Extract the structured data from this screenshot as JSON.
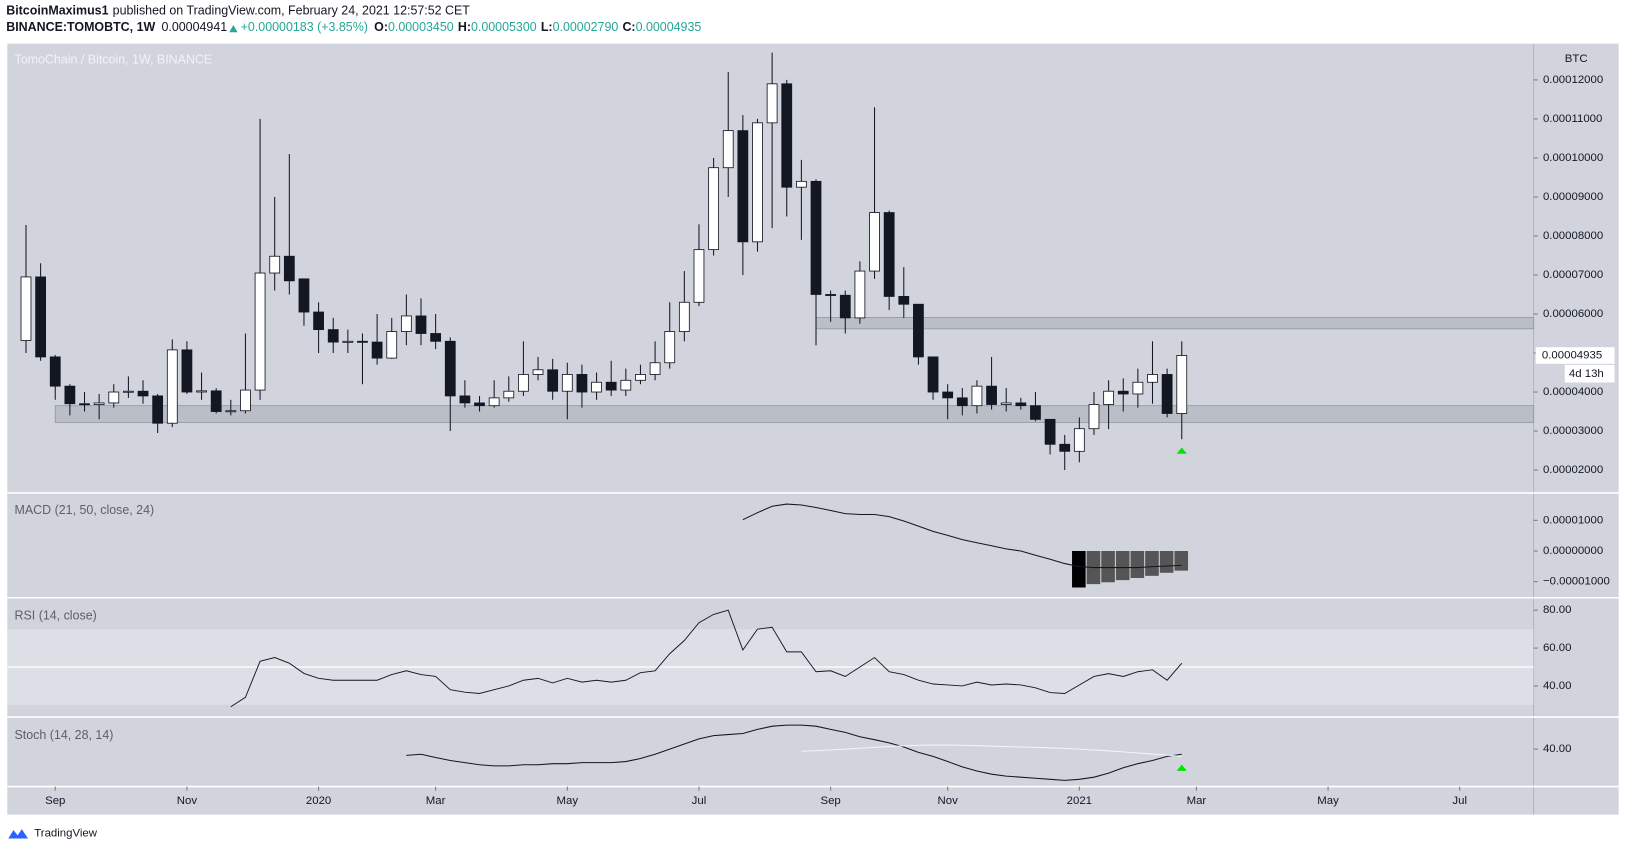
{
  "header": {
    "author": "BitcoinMaximus1",
    "published": "published on TradingView.com, February 24, 2021 12:57:52 CET",
    "symbol": "BINANCE:TOMOBTC, 1W",
    "last": "0.00004941",
    "change": "+0.00000183 (+3.85%)",
    "ohlc": [
      {
        "label": "O:",
        "value": "0.00003450"
      },
      {
        "label": "H:",
        "value": "0.00005300"
      },
      {
        "label": "L:",
        "value": "0.00002790"
      },
      {
        "label": "C:",
        "value": "0.00004935"
      }
    ]
  },
  "footer": {
    "brand": "TradingView"
  },
  "chart_data": [
    {
      "type": "candlestick",
      "title": "TomoChain / Bitcoin, 1W, BINANCE",
      "unit": "BTC",
      "up_color": "#ffffff",
      "down_color": "#131722",
      "categories": [
        null,
        null,
        null,
        null,
        null,
        null,
        null,
        null,
        null,
        null,
        null,
        null,
        null,
        null,
        null,
        null,
        null,
        null,
        null,
        null,
        null,
        null,
        null,
        null,
        null,
        null,
        null,
        null,
        null,
        null,
        null,
        null,
        null,
        null,
        null,
        null,
        null,
        null,
        null,
        null,
        null,
        null,
        null,
        null,
        null,
        null,
        null,
        null,
        null,
        null,
        null,
        null,
        null,
        null,
        null,
        null,
        null,
        null,
        null,
        null,
        null,
        null,
        null,
        null,
        null,
        null,
        null,
        null,
        null,
        null,
        null,
        null,
        null,
        null,
        null,
        null,
        null,
        null,
        null,
        null
      ],
      "open": [
        5.32e-05,
        6.95e-05,
        4.9e-05,
        4.15e-05,
        3.7e-05,
        3.68e-05,
        3.72e-05,
        4e-05,
        4.02e-05,
        3.9e-05,
        3.2e-05,
        5.08e-05,
        4e-05,
        4.03e-05,
        3.5e-05,
        3.52e-05,
        4.05e-05,
        7.05e-05,
        7.48e-05,
        6.9e-05,
        6.05e-05,
        5.6e-05,
        5.28e-05,
        5.3e-05,
        5.28e-05,
        4.87e-05,
        5.55e-05,
        5.95e-05,
        5.5e-05,
        5.3e-05,
        3.9e-05,
        3.72e-05,
        3.65e-05,
        3.85e-05,
        4.02e-05,
        4.45e-05,
        4.57e-05,
        4.02e-05,
        4.45e-05,
        4e-05,
        4.25e-05,
        4.05e-05,
        4.3e-05,
        4.45e-05,
        4.75e-05,
        5.55e-05,
        6.3e-05,
        7.65e-05,
        9.75e-05,
        0.000107,
        7.85e-05,
        0.000109,
        0.000119,
        9.25e-05,
        9.4e-05,
        6.5e-05,
        6.48e-05,
        5.9e-05,
        7.1e-05,
        8.6e-05,
        6.45e-05,
        6.25e-05,
        4.9e-05,
        4e-05,
        3.85e-05,
        3.65e-05,
        4.15e-05,
        3.68e-05,
        3.72e-05,
        3.65e-05,
        3.3e-05,
        2.66e-05,
        2.48e-05,
        3.06e-05,
        3.68e-05,
        4.02e-05,
        3.95e-05,
        4.25e-05,
        4.45e-05,
        3.45e-05
      ],
      "high": [
        8.28e-05,
        7.3e-05,
        4.95e-05,
        4.2e-05,
        4e-05,
        3.95e-05,
        4.2e-05,
        4.4e-05,
        4.3e-05,
        3.95e-05,
        5.35e-05,
        5.3e-05,
        4.5e-05,
        4.1e-05,
        3.8e-05,
        5.5e-05,
        0.00011,
        9e-05,
        0.000101,
        6.9e-05,
        6.3e-05,
        5.9e-05,
        5.6e-05,
        5.5e-05,
        6e-05,
        5.9e-05,
        6.5e-05,
        6.4e-05,
        6e-05,
        5.4e-05,
        4.3e-05,
        3.9e-05,
        4.3e-05,
        4.4e-05,
        5.3e-05,
        4.9e-05,
        4.85e-05,
        4.75e-05,
        4.7e-05,
        4.5e-05,
        4.8e-05,
        4.6e-05,
        4.7e-05,
        5.3e-05,
        6.3e-05,
        7.1e-05,
        8.3e-05,
        0.0001,
        0.000122,
        0.000111,
        0.00011,
        0.000127,
        0.00012,
        9.95e-05,
        9.45e-05,
        6.6e-05,
        6.6e-05,
        7.35e-05,
        0.000113,
        8.65e-05,
        7.2e-05,
        6.25e-05,
        4.9e-05,
        4.2e-05,
        4.1e-05,
        4.3e-05,
        4.9e-05,
        4.1e-05,
        3.85e-05,
        4e-05,
        3.3e-05,
        2.9e-05,
        3.35e-05,
        4e-05,
        4.3e-05,
        4.35e-05,
        4.6e-05,
        5.3e-05,
        4.6e-05,
        5.3e-05
      ],
      "low": [
        5e-05,
        4.8e-05,
        3.8e-05,
        3.4e-05,
        3.5e-05,
        3.3e-05,
        3.6e-05,
        3.85e-05,
        3.7e-05,
        2.95e-05,
        3.1e-05,
        3.95e-05,
        3.8e-05,
        3.45e-05,
        3.4e-05,
        3.45e-05,
        3.8e-05,
        6.6e-05,
        6.5e-05,
        5.7e-05,
        5e-05,
        5e-05,
        5e-05,
        4.2e-05,
        4.7e-05,
        4.85e-05,
        5.2e-05,
        5.2e-05,
        5.1e-05,
        3e-05,
        3.6e-05,
        3.5e-05,
        3.6e-05,
        3.75e-05,
        3.9e-05,
        4.3e-05,
        3.8e-05,
        3.3e-05,
        3.6e-05,
        3.8e-05,
        3.9e-05,
        3.9e-05,
        4.2e-05,
        4.3e-05,
        4.6e-05,
        5.3e-05,
        6.2e-05,
        7.5e-05,
        9e-05,
        7e-05,
        7.6e-05,
        8.2e-05,
        8.5e-05,
        7.9e-05,
        5.2e-05,
        5.8e-05,
        5.5e-05,
        5.75e-05,
        6.9e-05,
        6.1e-05,
        5.9e-05,
        4.7e-05,
        3.8e-05,
        3.3e-05,
        3.4e-05,
        3.45e-05,
        3.55e-05,
        3.5e-05,
        3.55e-05,
        3.25e-05,
        2.4e-05,
        2e-05,
        2.2e-05,
        2.9e-05,
        3.05e-05,
        3.5e-05,
        3.6e-05,
        3.7e-05,
        3.35e-05,
        2.79e-05
      ],
      "close": [
        6.95e-05,
        4.9e-05,
        4.15e-05,
        3.7e-05,
        3.68e-05,
        3.72e-05,
        4e-05,
        4.02e-05,
        3.9e-05,
        3.2e-05,
        5.08e-05,
        4e-05,
        4.03e-05,
        3.5e-05,
        3.52e-05,
        4.05e-05,
        7.05e-05,
        7.48e-05,
        6.85e-05,
        6.05e-05,
        5.6e-05,
        5.28e-05,
        5.3e-05,
        5.28e-05,
        4.87e-05,
        5.55e-05,
        5.95e-05,
        5.5e-05,
        5.3e-05,
        3.9e-05,
        3.72e-05,
        3.65e-05,
        3.85e-05,
        4.02e-05,
        4.45e-05,
        4.57e-05,
        4.02e-05,
        4.45e-05,
        4e-05,
        4.25e-05,
        4.05e-05,
        4.3e-05,
        4.45e-05,
        4.75e-05,
        5.55e-05,
        6.3e-05,
        7.65e-05,
        9.75e-05,
        0.000107,
        7.85e-05,
        0.000109,
        0.000119,
        9.25e-05,
        9.4e-05,
        6.5e-05,
        6.48e-05,
        5.9e-05,
        7.1e-05,
        8.6e-05,
        6.45e-05,
        6.25e-05,
        4.9e-05,
        4e-05,
        3.85e-05,
        3.65e-05,
        4.15e-05,
        3.68e-05,
        3.72e-05,
        3.65e-05,
        3.3e-05,
        2.66e-05,
        2.48e-05,
        3.06e-05,
        3.68e-05,
        4.02e-05,
        3.95e-05,
        4.25e-05,
        4.45e-05,
        3.45e-05,
        4.935e-05
      ],
      "zones": [
        {
          "from": 2,
          "range": [
            3.22e-05,
            3.65e-05
          ]
        },
        {
          "from": 54,
          "range": [
            5.62e-05,
            5.91e-05
          ]
        }
      ],
      "signals": [
        79
      ],
      "signal_color": "#00e600",
      "last_value": {
        "value": 4.935e-05,
        "label": "0.00004935"
      },
      "countdown": "4d 13h",
      "xlim": [
        -1.28,
        103.05
      ],
      "xticks": [
        {
          "value": 2,
          "label": "Sep"
        },
        {
          "value": 11,
          "label": "Nov"
        },
        {
          "value": 20,
          "label": "2020"
        },
        {
          "value": 28,
          "label": "Mar"
        },
        {
          "value": 37,
          "label": "May"
        },
        {
          "value": 46,
          "label": "Jul"
        },
        {
          "value": 55,
          "label": "Sep"
        },
        {
          "value": 63,
          "label": "Nov"
        },
        {
          "value": 72,
          "label": "2021"
        },
        {
          "value": 80,
          "label": "Mar"
        },
        {
          "value": 89,
          "label": "May"
        },
        {
          "value": 98,
          "label": "Jul"
        }
      ],
      "ylim": [
        1.44e-05,
        0.0001293
      ],
      "yticks": [
        {
          "value": 2e-05,
          "label": "0.00002000"
        },
        {
          "value": 3e-05,
          "label": "0.00003000"
        },
        {
          "value": 4e-05,
          "label": "0.00004000"
        },
        {
          "value": 5e-05,
          "label": "0.00005000"
        },
        {
          "value": 6e-05,
          "label": "0.00006000"
        },
        {
          "value": 7e-05,
          "label": "0.00007000"
        },
        {
          "value": 8e-05,
          "label": "0.00008000"
        },
        {
          "value": 9e-05,
          "label": "0.00009000"
        },
        {
          "value": 0.0001,
          "label": "0.00010000"
        },
        {
          "value": 0.00011,
          "label": "0.00011000"
        },
        {
          "value": 0.00012,
          "label": "0.00012000"
        }
      ]
    },
    {
      "type": "macd",
      "title": "MACD (21, 50, close, 24)",
      "series": [
        {
          "color": "#131722",
          "values": [
            null,
            null,
            null,
            null,
            null,
            null,
            null,
            null,
            null,
            null,
            null,
            null,
            null,
            null,
            null,
            null,
            null,
            null,
            null,
            null,
            null,
            null,
            null,
            null,
            null,
            null,
            null,
            null,
            null,
            null,
            null,
            null,
            null,
            null,
            null,
            null,
            null,
            null,
            null,
            null,
            null,
            null,
            null,
            null,
            null,
            null,
            null,
            null,
            null,
            1.02e-05,
            1.25e-05,
            1.46e-05,
            1.53e-05,
            1.5e-05,
            1.42e-05,
            1.32e-05,
            1.22e-05,
            1.19e-05,
            1.19e-05,
            1.12e-05,
            9.8e-06,
            8.1e-06,
            6.4e-06,
            5.1e-06,
            3.7e-06,
            2.7e-06,
            1.7e-06,
            7e-07,
            0,
            -1.4e-06,
            -2.7e-06,
            -4.1e-06,
            -5.1e-06,
            -5.4e-06,
            -5.4e-06,
            -5.4e-06,
            -5.4e-06,
            -5.1e-06,
            -4.9e-06,
            -4.7e-06
          ]
        }
      ],
      "histogram": {
        "values": [
          null,
          null,
          null,
          null,
          null,
          null,
          null,
          null,
          null,
          null,
          null,
          null,
          null,
          null,
          null,
          null,
          null,
          null,
          null,
          null,
          null,
          null,
          null,
          null,
          null,
          null,
          null,
          null,
          null,
          null,
          null,
          null,
          null,
          null,
          null,
          null,
          null,
          null,
          null,
          null,
          null,
          null,
          null,
          null,
          null,
          null,
          null,
          null,
          null,
          null,
          null,
          null,
          null,
          null,
          null,
          null,
          null,
          null,
          null,
          null,
          null,
          null,
          null,
          null,
          null,
          null,
          null,
          null,
          null,
          null,
          null,
          null,
          -1.19e-05,
          -1.08e-05,
          -1.02e-05,
          -9.5e-06,
          -8.8e-06,
          -8.1e-06,
          -7.1e-06,
          -6.4e-06
        ],
        "colors": [
          "#000000",
          "#555555"
        ]
      },
      "ylim": [
        -1.49e-05,
        1.86e-05
      ],
      "yticks": [
        {
          "value": 1e-05,
          "label": "0.00001000"
        },
        {
          "value": 0,
          "label": "0.00000000"
        },
        {
          "value": -1e-05,
          "label": "−0.00001000"
        }
      ]
    },
    {
      "type": "rsi",
      "title": "RSI (14, close)",
      "series": [
        {
          "color": "#131722",
          "values": [
            null,
            null,
            null,
            null,
            null,
            null,
            null,
            null,
            null,
            null,
            null,
            null,
            null,
            null,
            29,
            34,
            53,
            55,
            52,
            46.6,
            44,
            43,
            43,
            43,
            43,
            46,
            48,
            46,
            45,
            38,
            36.7,
            36,
            38,
            40,
            43,
            44,
            41.6,
            44,
            42,
            43,
            42,
            43,
            47,
            48,
            57,
            64,
            73.4,
            77.8,
            80,
            59,
            70,
            71,
            58,
            58,
            47.5,
            48,
            45,
            50,
            55,
            47.5,
            46,
            43,
            41,
            40.5,
            40,
            42,
            40.5,
            41,
            40.5,
            39,
            36.5,
            36,
            40.5,
            45,
            46.5,
            45,
            47.5,
            48.5,
            43,
            52
          ]
        }
      ],
      "band": [
        30,
        70
      ],
      "midline": 50,
      "ylim": [
        24.1,
        85.5
      ],
      "yticks": [
        {
          "value": 40,
          "label": "40.00"
        },
        {
          "value": 60,
          "label": "60.00"
        },
        {
          "value": 80,
          "label": "80.00"
        }
      ]
    },
    {
      "type": "stoch",
      "title": "Stoch (14, 28, 14)",
      "series": [
        {
          "color": "#131722",
          "values": [
            null,
            null,
            null,
            null,
            null,
            null,
            null,
            null,
            null,
            null,
            null,
            null,
            null,
            null,
            null,
            null,
            null,
            null,
            null,
            null,
            null,
            null,
            null,
            null,
            null,
            null,
            37.1,
            37.6,
            36.1,
            34.7,
            33.7,
            32.7,
            32.2,
            32.2,
            32.7,
            32.7,
            33.2,
            33.2,
            33.7,
            33.7,
            33.7,
            34.2,
            35.6,
            37.6,
            40,
            42.4,
            44.8,
            46.3,
            46.8,
            47.3,
            49.2,
            50.7,
            51.2,
            51.2,
            50.7,
            49.2,
            47.8,
            45.8,
            44.4,
            42.9,
            41,
            38.5,
            36.6,
            34.2,
            31.7,
            29.8,
            28.3,
            27.4,
            26.9,
            26.4,
            25.9,
            25.4,
            25.9,
            26.9,
            28.8,
            31.3,
            33.2,
            34.7,
            36.6,
            37.6
          ]
        },
        {
          "color": "#f4f4f6",
          "values": [
            null,
            null,
            null,
            null,
            null,
            null,
            null,
            null,
            null,
            null,
            null,
            null,
            null,
            null,
            null,
            null,
            null,
            null,
            null,
            null,
            null,
            null,
            null,
            null,
            null,
            null,
            null,
            null,
            null,
            null,
            null,
            null,
            null,
            null,
            null,
            null,
            null,
            null,
            null,
            null,
            null,
            null,
            null,
            null,
            null,
            null,
            null,
            null,
            null,
            null,
            null,
            null,
            null,
            39,
            39.3,
            39.6,
            40,
            40.4,
            40.8,
            41.2,
            41.5,
            41.8,
            41.9,
            41.9,
            41.8,
            41.6,
            41.4,
            41.2,
            41,
            40.8,
            40.6,
            40.3,
            40,
            39.6,
            39.2,
            38.7,
            38.2,
            37.7,
            37.2,
            36.6
          ]
        }
      ],
      "signals": [
        79
      ],
      "signal_color": "#00e600",
      "ylim": [
        23,
        54
      ],
      "yticks": [
        {
          "value": 40,
          "label": "40.00"
        }
      ]
    }
  ]
}
